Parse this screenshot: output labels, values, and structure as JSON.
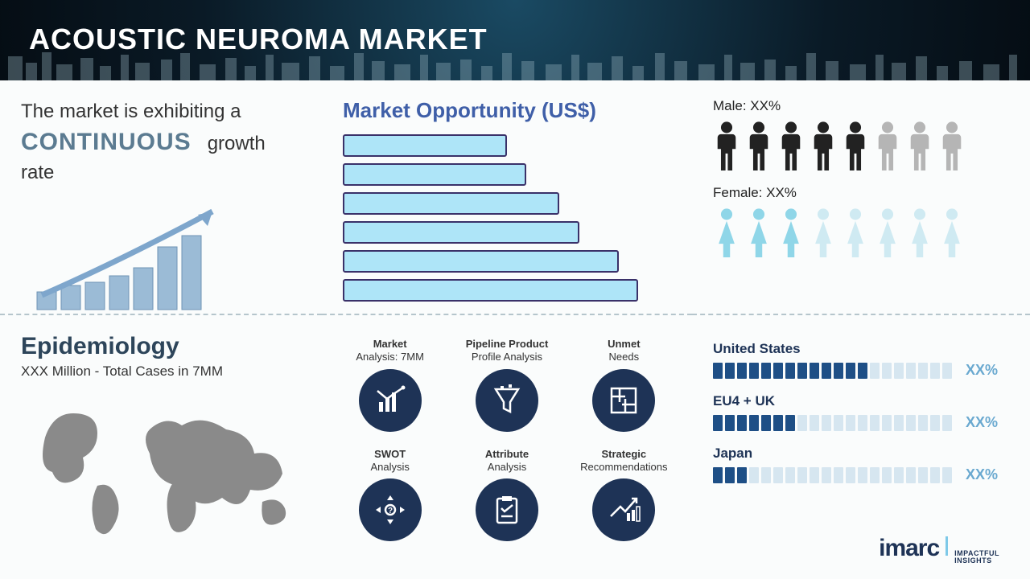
{
  "header": {
    "title": "ACOUSTIC NEUROMA MARKET"
  },
  "growth": {
    "line1": "The market is exhibiting a",
    "big": "CONTINUOUS",
    "line2": "growth rate",
    "mini_bars": [
      22,
      30,
      34,
      42,
      52,
      78,
      92
    ],
    "bar_color": "#9bbbd6",
    "arrow_color": "#7ea6cc"
  },
  "opportunity": {
    "title": "Market Opportunity (US$)",
    "bar_widths_pct": [
      50,
      56,
      66,
      72,
      84,
      90
    ],
    "bar_fill": "#aee5f8",
    "bar_border": "#3a3169"
  },
  "gender": {
    "male": {
      "label": "Male: XX%",
      "filled": 5,
      "total": 8,
      "fill": "#222222",
      "empty": "#b5b5b5"
    },
    "female": {
      "label": "Female: XX%",
      "filled": 3,
      "total": 8,
      "fill": "#8fd6e8",
      "empty": "#cfeaf2"
    }
  },
  "epidemiology": {
    "title": "Epidemiology",
    "sub": "XXX Million - Total Cases in 7MM",
    "map_color": "#8a8a8a"
  },
  "analysis": {
    "icon_bg": "#1e3356",
    "icon_fg": "#ffffff",
    "items": [
      {
        "label_bold": "Market",
        "label_thin": "Analysis: 7MM"
      },
      {
        "label_bold": "Pipeline Product",
        "label_thin": "Profile Analysis"
      },
      {
        "label_bold": "Unmet",
        "label_thin": "Needs"
      },
      {
        "label_bold": "SWOT",
        "label_thin": "Analysis"
      },
      {
        "label_bold": "Attribute",
        "label_thin": "Analysis"
      },
      {
        "label_bold": "Strategic",
        "label_thin": "Recommendations"
      }
    ]
  },
  "regions": {
    "seg_total": 20,
    "fill": "#1e4f86",
    "empty": "#d6e6f0",
    "pct_color": "#6aa9d0",
    "items": [
      {
        "name": "United States",
        "filled": 13,
        "pct": "XX%"
      },
      {
        "name": "EU4 + UK",
        "filled": 7,
        "pct": "XX%"
      },
      {
        "name": "Japan",
        "filled": 3,
        "pct": "XX%"
      }
    ]
  },
  "brand": {
    "main": "imarc",
    "sub1": "IMPACTFUL",
    "sub2": "INSIGHTS"
  }
}
